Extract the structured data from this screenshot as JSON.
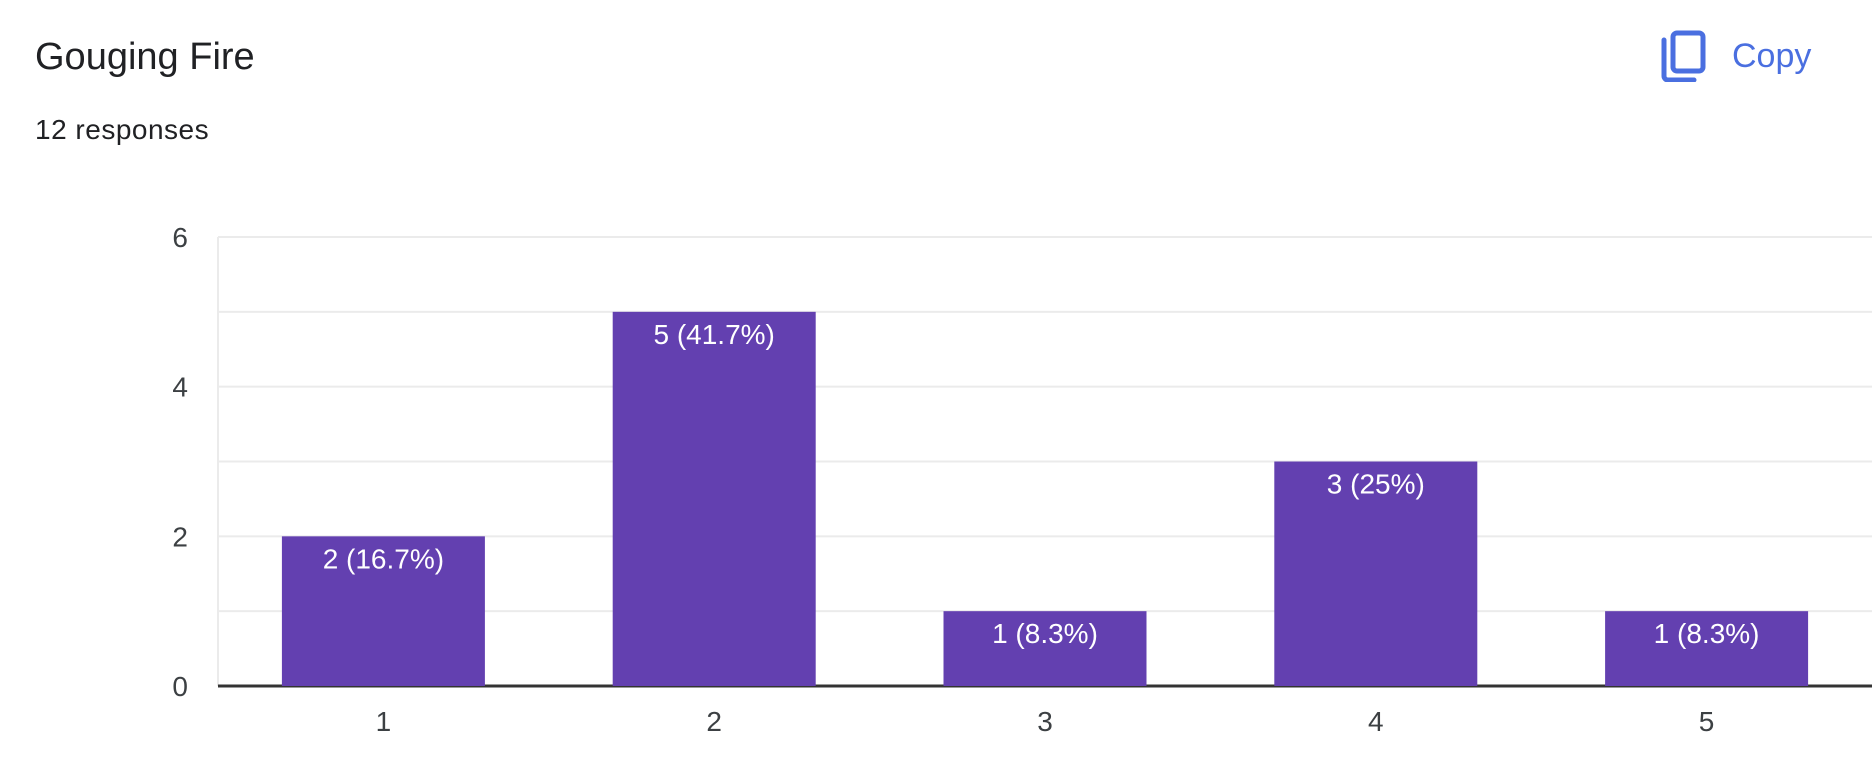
{
  "header": {
    "title": "Gouging Fire",
    "subtitle": "12 responses",
    "copy_label": "Copy",
    "copy_icon": "copy-icon"
  },
  "colors": {
    "bar": "#6340b0",
    "accent": "#4a6fe0",
    "grid": "#ebebeb",
    "axis": "#333333"
  },
  "chart_data": {
    "type": "bar",
    "title": "Gouging Fire",
    "xlabel": "",
    "ylabel": "",
    "categories": [
      "1",
      "2",
      "3",
      "4",
      "5"
    ],
    "values": [
      2,
      5,
      1,
      3,
      1
    ],
    "data_labels": [
      "2 (16.7%)",
      "5 (41.7%)",
      "1 (8.3%)",
      "3 (25%)",
      "1 (8.3%)"
    ],
    "ylim": [
      0,
      6
    ],
    "yticks": [
      0,
      2,
      4,
      6
    ],
    "grid": true,
    "legend": "none"
  }
}
